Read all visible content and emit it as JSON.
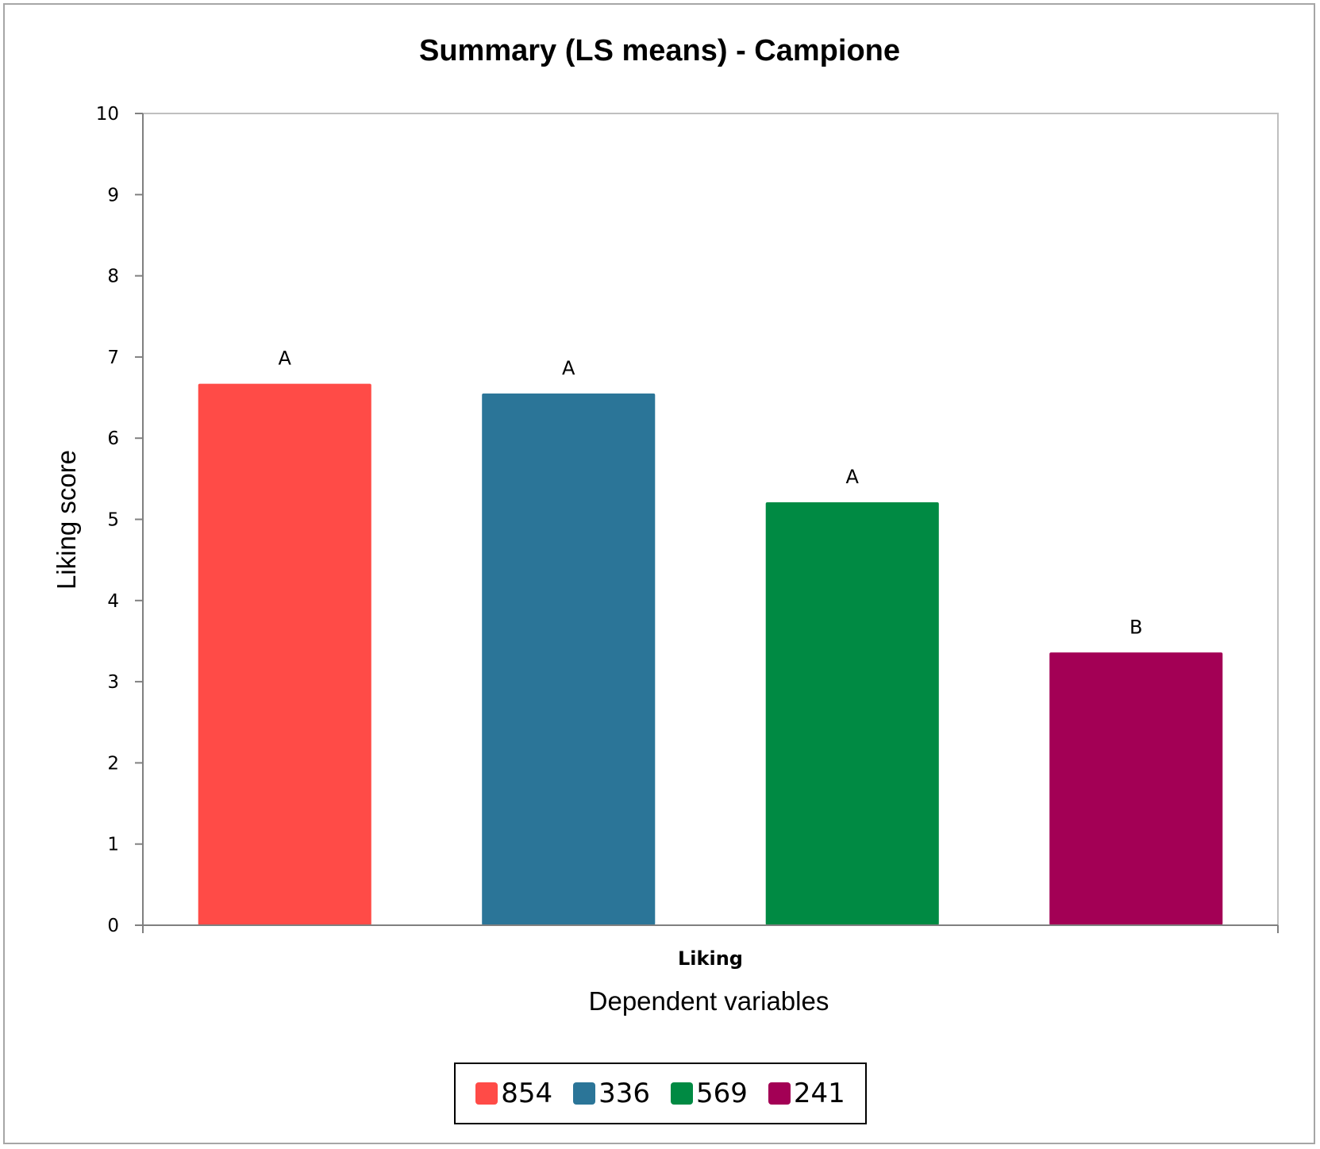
{
  "chart_data": {
    "type": "bar",
    "title": "Summary (LS means) - Campione",
    "xlabel": "Dependent variables",
    "ylabel": "Liking score",
    "categories": [
      "Liking"
    ],
    "series": [
      {
        "name": "854",
        "values": [
          6.67
        ],
        "color": "#ff4b47",
        "group_letter": "A"
      },
      {
        "name": "336",
        "values": [
          6.55
        ],
        "color": "#2b7598",
        "group_letter": "A"
      },
      {
        "name": "569",
        "values": [
          5.21
        ],
        "color": "#008a43",
        "group_letter": "A"
      },
      {
        "name": "241",
        "values": [
          3.36
        ],
        "color": "#a30055",
        "group_letter": "B"
      }
    ],
    "ylim": [
      0,
      10
    ],
    "yticks": [
      0,
      1,
      2,
      3,
      4,
      5,
      6,
      7,
      8,
      9,
      10
    ],
    "grid": false,
    "legend_position": "bottom"
  }
}
